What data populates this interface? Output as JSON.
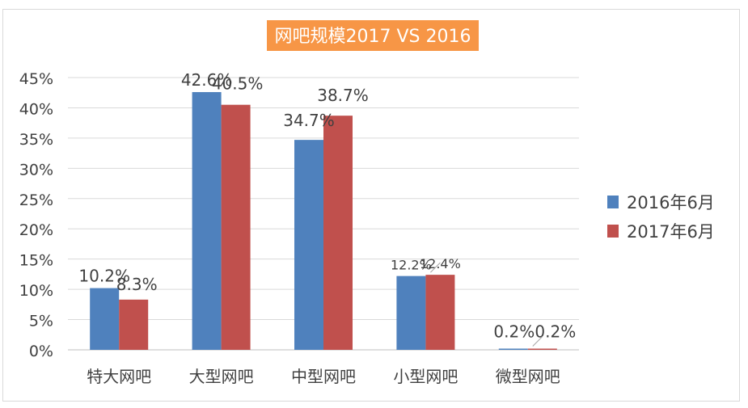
{
  "chart_data": {
    "type": "bar",
    "title": "网吧规模2017 VS 2016",
    "categories": [
      "特大网吧",
      "大型网吧",
      "中型网吧",
      "小型网吧",
      "微型网吧"
    ],
    "series": [
      {
        "name": "2016年6月",
        "color": "#4F81BD",
        "values": [
          10.2,
          42.6,
          34.7,
          12.2,
          0.2
        ],
        "labels": [
          "10.2%",
          "42.6%",
          "34.7%",
          "12.2%",
          "0.2%"
        ]
      },
      {
        "name": "2017年6月",
        "color": "#C0504D",
        "values": [
          8.3,
          40.5,
          38.7,
          12.4,
          0.2
        ],
        "labels": [
          "8.3%",
          "40.5%",
          "38.7%",
          "12.4%",
          "0.2%"
        ]
      }
    ],
    "ylim": [
      0,
      45
    ],
    "yticks": [
      0,
      5,
      10,
      15,
      20,
      25,
      30,
      35,
      40,
      45
    ],
    "ytick_labels": [
      "0%",
      "5%",
      "10%",
      "15%",
      "20%",
      "25%",
      "30%",
      "35%",
      "40%",
      "45%"
    ],
    "grid": true,
    "legend_position": "right",
    "title_background": "#F79646"
  }
}
